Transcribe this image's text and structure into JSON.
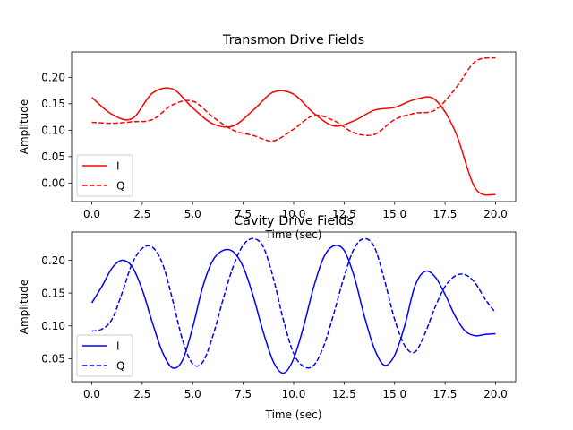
{
  "chart_data": [
    {
      "type": "line",
      "title": "Transmon Drive Fields",
      "xlabel": "Time (sec)",
      "ylabel": "Amplitude",
      "xlim": [
        -1.0,
        21.0
      ],
      "ylim": [
        -0.035,
        0.248
      ],
      "xticks": [
        0.0,
        2.5,
        5.0,
        7.5,
        10.0,
        12.5,
        15.0,
        17.5,
        20.0
      ],
      "xtick_labels": [
        "0.0",
        "2.5",
        "5.0",
        "7.5",
        "10.0",
        "12.5",
        "15.0",
        "17.5",
        "20.0"
      ],
      "yticks": [
        0.0,
        0.05,
        0.1,
        0.15,
        0.2
      ],
      "ytick_labels": [
        "0.00",
        "0.05",
        "0.10",
        "0.15",
        "0.20"
      ],
      "legend_position": "lower-left",
      "grid": false,
      "x": [
        0.0,
        1.0,
        2.0,
        3.0,
        4.0,
        5.0,
        6.0,
        7.0,
        8.0,
        9.0,
        10.0,
        11.0,
        12.0,
        13.0,
        14.0,
        15.0,
        16.0,
        17.0,
        18.0,
        19.0,
        20.0
      ],
      "series": [
        {
          "name": "I",
          "color": "#ff0000",
          "dashed": false,
          "values": [
            0.162,
            0.13,
            0.122,
            0.17,
            0.178,
            0.142,
            0.112,
            0.108,
            0.138,
            0.172,
            0.168,
            0.132,
            0.108,
            0.118,
            0.138,
            0.143,
            0.158,
            0.158,
            0.098,
            -0.01,
            -0.022
          ]
        },
        {
          "name": "Q",
          "color": "#ff0000",
          "dashed": true,
          "values": [
            0.115,
            0.113,
            0.116,
            0.12,
            0.148,
            0.155,
            0.125,
            0.1,
            0.09,
            0.08,
            0.102,
            0.128,
            0.118,
            0.095,
            0.092,
            0.12,
            0.132,
            0.138,
            0.178,
            0.23,
            0.237
          ]
        }
      ]
    },
    {
      "type": "line",
      "title": "Cavity Drive Fields",
      "xlabel": "Time (sec)",
      "ylabel": "Amplitude",
      "xlim": [
        -1.0,
        21.0
      ],
      "ylim": [
        0.015,
        0.243
      ],
      "xticks": [
        0.0,
        2.5,
        5.0,
        7.5,
        10.0,
        12.5,
        15.0,
        17.5,
        20.0
      ],
      "xtick_labels": [
        "0.0",
        "2.5",
        "5.0",
        "7.5",
        "10.0",
        "12.5",
        "15.0",
        "17.5",
        "20.0"
      ],
      "yticks": [
        0.05,
        0.1,
        0.15,
        0.2
      ],
      "ytick_labels": [
        "0.05",
        "0.10",
        "0.15",
        "0.20"
      ],
      "legend_position": "lower-left",
      "grid": false,
      "x": [
        0.0,
        0.5,
        1.0,
        1.5,
        2.0,
        2.5,
        3.0,
        3.5,
        4.0,
        4.5,
        5.0,
        5.5,
        6.0,
        6.5,
        7.0,
        7.5,
        8.0,
        8.5,
        9.0,
        9.5,
        10.0,
        10.5,
        11.0,
        11.5,
        12.0,
        12.5,
        13.0,
        13.5,
        14.0,
        14.5,
        15.0,
        15.5,
        16.0,
        16.5,
        17.0,
        17.5,
        18.0,
        18.5,
        19.0,
        19.5,
        20.0
      ],
      "series": [
        {
          "name": "I",
          "color": "#0000ff",
          "dashed": false,
          "values": [
            0.135,
            0.16,
            0.188,
            0.2,
            0.19,
            0.155,
            0.105,
            0.06,
            0.036,
            0.048,
            0.098,
            0.16,
            0.2,
            0.215,
            0.213,
            0.19,
            0.145,
            0.09,
            0.045,
            0.028,
            0.05,
            0.1,
            0.16,
            0.205,
            0.222,
            0.215,
            0.175,
            0.115,
            0.065,
            0.04,
            0.055,
            0.1,
            0.16,
            0.183,
            0.175,
            0.148,
            0.115,
            0.092,
            0.085,
            0.087,
            0.088
          ]
        },
        {
          "name": "Q",
          "color": "#0000ff",
          "dashed": true,
          "values": [
            0.092,
            0.095,
            0.11,
            0.15,
            0.195,
            0.218,
            0.22,
            0.195,
            0.14,
            0.078,
            0.042,
            0.045,
            0.085,
            0.14,
            0.19,
            0.223,
            0.233,
            0.22,
            0.172,
            0.108,
            0.058,
            0.038,
            0.04,
            0.07,
            0.12,
            0.175,
            0.218,
            0.233,
            0.22,
            0.17,
            0.11,
            0.07,
            0.06,
            0.088,
            0.128,
            0.16,
            0.176,
            0.178,
            0.165,
            0.14,
            0.12
          ]
        }
      ]
    }
  ]
}
